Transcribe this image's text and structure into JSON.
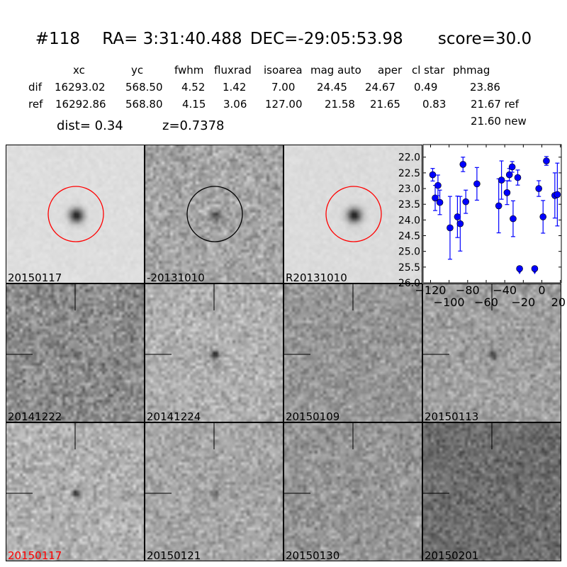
{
  "header": {
    "id": "#118",
    "ra": "RA= 3:31:40.488",
    "dec": "DEC=-29:05:53.98",
    "score": "score=30.0"
  },
  "table": {
    "columns": [
      "xc",
      "yc",
      "fwhm",
      "fluxrad",
      "isoarea",
      "mag auto",
      "aper",
      "cl star",
      "phmag"
    ],
    "rows": [
      {
        "label": "dif",
        "values": [
          "16293.02",
          "568.50",
          "4.52",
          "1.42",
          "7.00",
          "24.45",
          "24.67",
          "0.49",
          "23.86"
        ]
      },
      {
        "label": "ref",
        "values": [
          "16292.86",
          "568.80",
          "4.15",
          "3.06",
          "127.00",
          "21.58",
          "21.65",
          "0.83",
          "21.67 ref"
        ]
      }
    ],
    "extra_phmag": "21.60 new",
    "dist": "dist=  0.34",
    "z": "z=0.7378"
  },
  "stamps": [
    {
      "label": "20150117",
      "label_color": "#000000",
      "kind": "sci",
      "circle": "#ff0000"
    },
    {
      "label": "-20131010",
      "kind": "diff",
      "circle": "#000000"
    },
    {
      "label": "R20131010",
      "kind": "ref",
      "circle": "#ff0000"
    },
    {
      "label": "20141222",
      "kind": "epoch"
    },
    {
      "label": "20141224",
      "kind": "epoch"
    },
    {
      "label": "20150109",
      "kind": "epoch"
    },
    {
      "label": "20150113",
      "kind": "epoch"
    },
    {
      "label": "20150117",
      "label_color": "#ff0000",
      "kind": "epoch"
    },
    {
      "label": "20150121",
      "kind": "epoch"
    },
    {
      "label": "20150130",
      "kind": "epoch"
    },
    {
      "label": "20150201",
      "kind": "epoch"
    }
  ],
  "chart_data": {
    "type": "scatter",
    "xlim": [
      -128,
      21
    ],
    "ylim": [
      26.0,
      21.6
    ],
    "y_inverted": true,
    "xticks": [
      "-120",
      "-100",
      "-80",
      "-60",
      "-40",
      "-20",
      "0",
      "20"
    ],
    "yticks": [
      "22.0",
      "22.5",
      "23.0",
      "23.5",
      "24.0",
      "24.5",
      "25.0",
      "25.5",
      "26.0"
    ],
    "color": "#0000ff",
    "points": [
      {
        "x": -117.7,
        "y": 22.56,
        "err": 0.2
      },
      {
        "x": -115.0,
        "y": 23.3,
        "err": 0.4
      },
      {
        "x": -112.0,
        "y": 22.9,
        "err": 0.33
      },
      {
        "x": -110.0,
        "y": 23.44,
        "err": 0.39
      },
      {
        "x": -99.0,
        "y": 24.25,
        "err": 1.0
      },
      {
        "x": -91.0,
        "y": 23.9,
        "err": 0.66
      },
      {
        "x": -88.0,
        "y": 24.12,
        "err": 0.87
      },
      {
        "x": -85.0,
        "y": 22.23,
        "err": 0.23
      },
      {
        "x": -82.0,
        "y": 23.42,
        "err": 0.37
      },
      {
        "x": -70.0,
        "y": 22.85,
        "err": 0.52
      },
      {
        "x": -46.5,
        "y": 23.55,
        "err": 0.86
      },
      {
        "x": -43.5,
        "y": 22.73,
        "err": 0.61
      },
      {
        "x": -37.5,
        "y": 23.13,
        "err": 0.38
      },
      {
        "x": -35.0,
        "y": 22.56,
        "err": 0.2
      },
      {
        "x": -32.0,
        "y": 22.31,
        "err": 0.17
      },
      {
        "x": -31.0,
        "y": 23.96,
        "err": 0.57
      },
      {
        "x": -26.0,
        "y": 22.65,
        "err": 0.24
      },
      {
        "x": -3.3,
        "y": 23.0,
        "err": 0.25
      },
      {
        "x": 1.3,
        "y": 23.9,
        "err": 0.52
      },
      {
        "x": 4.9,
        "y": 22.12,
        "err": 0.14
      },
      {
        "x": 14.0,
        "y": 23.22,
        "err": 0.72
      },
      {
        "x": 16.7,
        "y": 23.19,
        "err": 1.0
      }
    ],
    "upper_limits": [
      {
        "x": -24.0,
        "y": 25.55
      },
      {
        "x": -7.7,
        "y": 25.55
      }
    ]
  }
}
